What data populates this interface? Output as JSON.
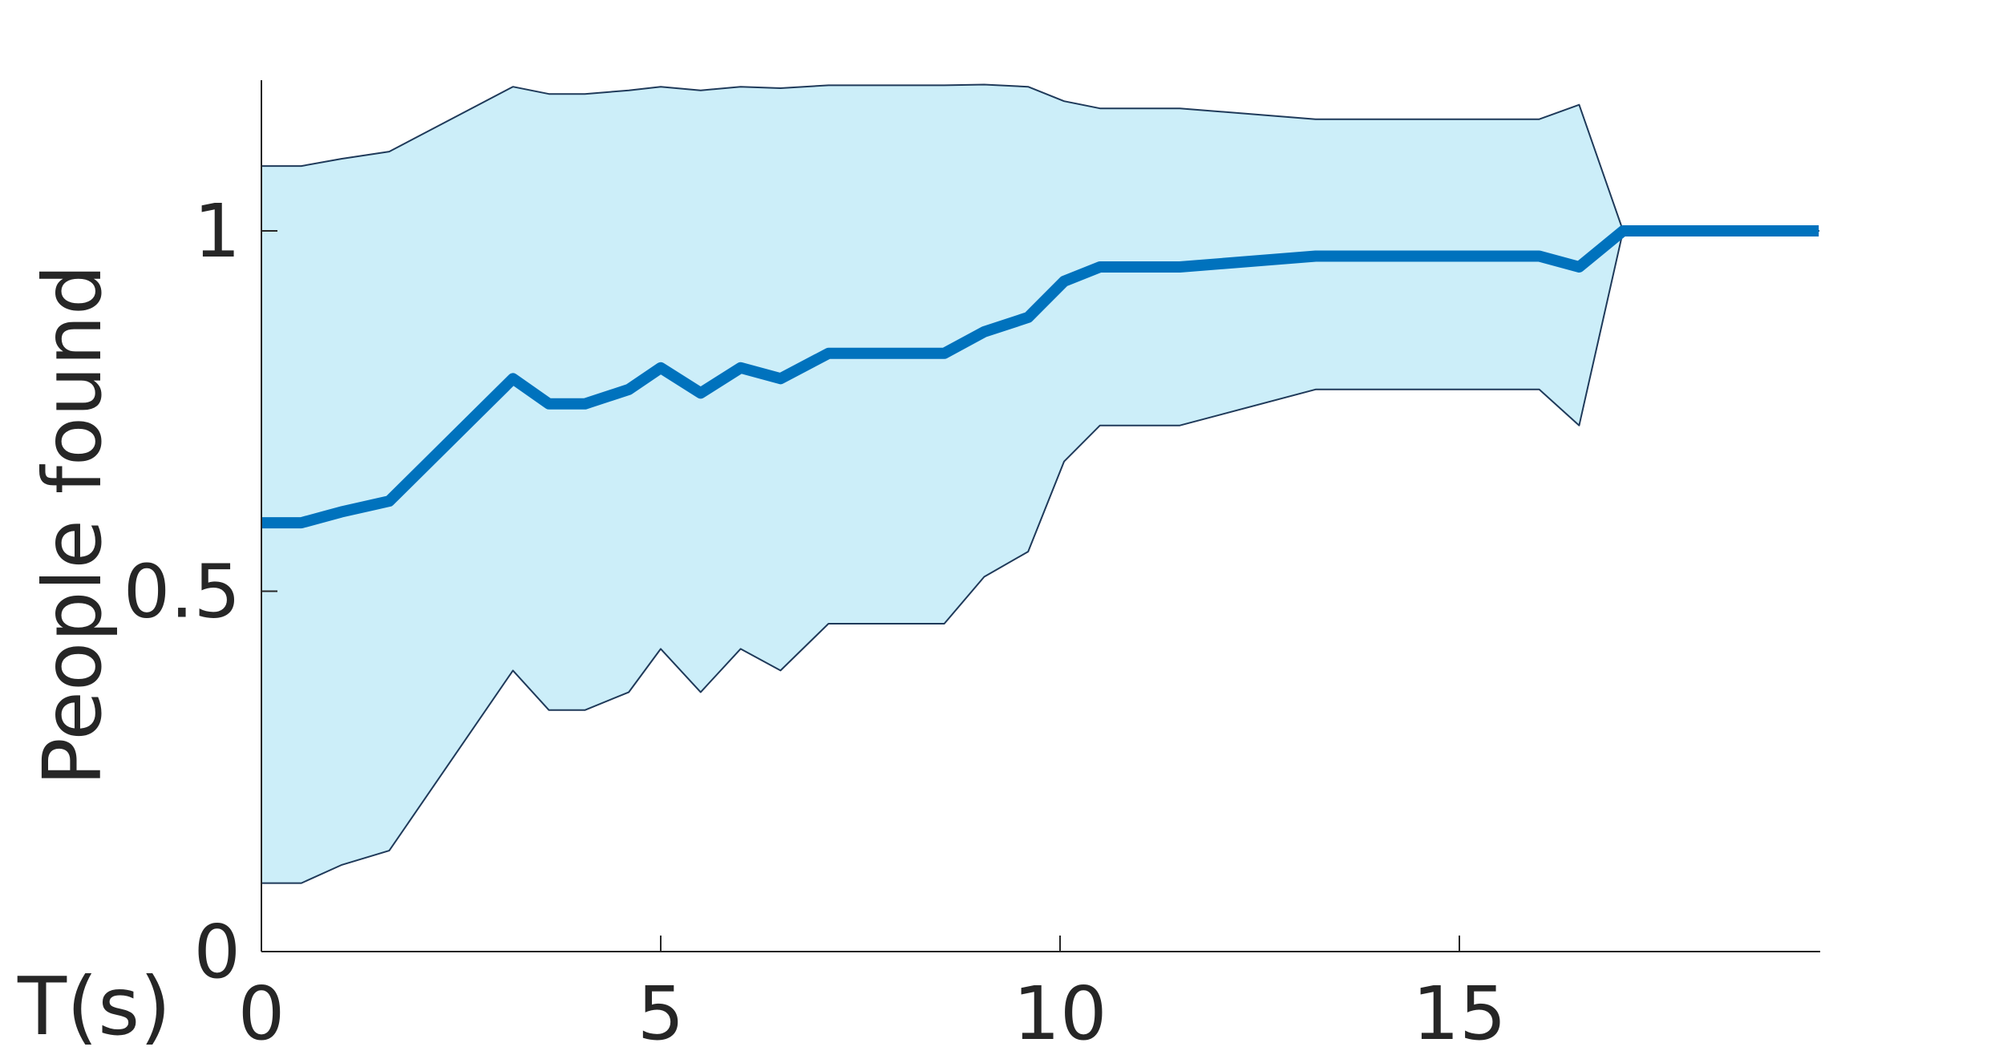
{
  "chart_data": {
    "type": "area",
    "title": "",
    "xlabel": "T(s)",
    "ylabel": "People found",
    "xlim": [
      0,
      19.5
    ],
    "ylim": [
      0,
      1.22
    ],
    "xticks": [
      0,
      5,
      10,
      15
    ],
    "yticks": [
      0,
      0.5,
      1
    ],
    "xtick_labels": [
      "0",
      "5",
      "10",
      "15"
    ],
    "ytick_labels": [
      "0",
      "0.5",
      "1"
    ],
    "grid": false,
    "legend": "none",
    "colors": {
      "line": "#0072BD",
      "band": "#CCEEF9",
      "band_edge": "#1F3A5A",
      "axis": "#262626"
    },
    "series": [
      {
        "x": [
          0,
          0.5,
          1,
          1.6,
          3.15,
          3.6,
          4.05,
          4.6,
          5.0,
          5.5,
          6.0,
          6.5,
          7.1,
          8.55,
          9.05,
          9.6,
          10.05,
          10.5,
          11.5,
          13.2,
          14.5,
          16.0,
          16.5,
          17.05,
          19.5
        ],
        "y": [
          0.595,
          0.595,
          0.61,
          0.625,
          0.795,
          0.76,
          0.76,
          0.78,
          0.81,
          0.775,
          0.81,
          0.795,
          0.83,
          0.83,
          0.86,
          0.88,
          0.93,
          0.95,
          0.95,
          0.965,
          0.965,
          0.965,
          0.95,
          1.0,
          1.0
        ],
        "lower": [
          0.095,
          0.095,
          0.12,
          0.14,
          0.39,
          0.335,
          0.335,
          0.36,
          0.42,
          0.36,
          0.42,
          0.39,
          0.455,
          0.455,
          0.52,
          0.555,
          0.68,
          0.73,
          0.73,
          0.78,
          0.78,
          0.78,
          0.73,
          1.0,
          1.0
        ],
        "upper": [
          1.09,
          1.09,
          1.1,
          1.11,
          1.2,
          1.19,
          1.19,
          1.195,
          1.2,
          1.195,
          1.2,
          1.198,
          1.202,
          1.202,
          1.203,
          1.2,
          1.18,
          1.17,
          1.17,
          1.155,
          1.155,
          1.155,
          1.175,
          1.0,
          1.0
        ]
      }
    ]
  }
}
